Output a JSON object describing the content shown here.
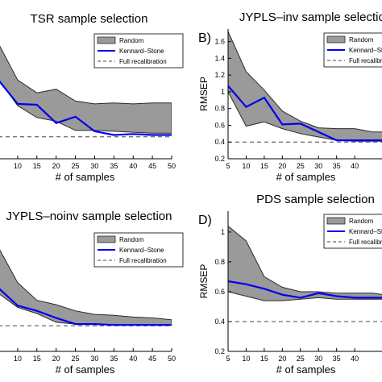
{
  "colors": {
    "random_fill": "#9a9a9a",
    "random_stroke": "#2a2a2a",
    "kennard_stone": "#0000ee",
    "full_recalibration": "#444444",
    "axis": "#000000"
  },
  "legend": {
    "random": "Random",
    "kennard_stone": "Kennard–Stone",
    "full_recalibration": "Full recalibration"
  },
  "chart_data": [
    {
      "type": "area",
      "panel_label": "",
      "title": "TSR sample selection",
      "xlabel": "# of samples",
      "ylabel": "",
      "xlim": [
        5,
        50
      ],
      "ylim": [
        0.3,
        1.7
      ],
      "xticks": [
        10,
        15,
        20,
        25,
        30,
        35,
        40,
        45,
        50
      ],
      "yticks": [],
      "legend_position": "top-right",
      "x": [
        5,
        10,
        15,
        20,
        25,
        30,
        35,
        40,
        45,
        50
      ],
      "series": [
        {
          "name": "Random",
          "kind": "band",
          "upper": [
            1.56,
            1.16,
            1.02,
            1.06,
            0.93,
            0.9,
            0.91,
            0.9,
            0.91,
            0.91
          ],
          "lower": [
            1.17,
            0.88,
            0.75,
            0.71,
            0.61,
            0.61,
            0.6,
            0.59,
            0.58,
            0.58
          ]
        },
        {
          "name": "Kennard–Stone",
          "kind": "line",
          "values": [
            1.16,
            0.9,
            0.89,
            0.69,
            0.76,
            0.6,
            0.56,
            0.57,
            0.56,
            0.56
          ]
        },
        {
          "name": "Full recalibration",
          "kind": "hline",
          "value": 0.54
        }
      ]
    },
    {
      "type": "area",
      "panel_label": "B)",
      "title": "JYPLS–inv sample selection",
      "xlabel": "# of samples",
      "ylabel": "RMSEP",
      "xlim": [
        5,
        48
      ],
      "ylim": [
        0.2,
        1.75
      ],
      "xticks": [
        5,
        10,
        15,
        20,
        25,
        30,
        35,
        40
      ],
      "yticks": [
        0.2,
        0.4,
        0.6,
        0.8,
        1.0,
        1.2,
        1.4,
        1.6
      ],
      "legend_position": "top-right",
      "x": [
        5,
        10,
        15,
        20,
        25,
        30,
        35,
        40,
        45,
        48
      ],
      "series": [
        {
          "name": "Random",
          "kind": "band",
          "upper": [
            1.72,
            1.24,
            1.02,
            0.77,
            0.65,
            0.57,
            0.56,
            0.56,
            0.52,
            0.52
          ],
          "lower": [
            1.0,
            0.59,
            0.64,
            0.56,
            0.5,
            0.46,
            0.42,
            0.41,
            0.41,
            0.41
          ]
        },
        {
          "name": "Kennard–Stone",
          "kind": "line",
          "values": [
            1.07,
            0.82,
            0.93,
            0.61,
            0.62,
            0.52,
            0.42,
            0.42,
            0.42,
            0.42
          ]
        },
        {
          "name": "Full recalibration",
          "kind": "hline",
          "value": 0.4
        }
      ]
    },
    {
      "type": "area",
      "panel_label": "",
      "title": "JYPLS–noinv sample selection",
      "xlabel": "# of samples",
      "ylabel": "",
      "xlim": [
        5,
        50
      ],
      "ylim": [
        0.3,
        1.7
      ],
      "xticks": [
        10,
        15,
        20,
        25,
        30,
        35,
        40,
        45,
        50
      ],
      "yticks": [],
      "legend_position": "top-right",
      "x": [
        5,
        10,
        15,
        20,
        25,
        30,
        35,
        40,
        45,
        50
      ],
      "series": [
        {
          "name": "Random",
          "kind": "band",
          "upper": [
            1.48,
            1.08,
            0.88,
            0.83,
            0.76,
            0.72,
            0.71,
            0.69,
            0.68,
            0.66
          ]
        },
        {
          "name": "Kennard–Stone",
          "kind": "line",
          "values": [
            1.02,
            0.82,
            0.76,
            0.68,
            0.61,
            0.61,
            0.6,
            0.6,
            0.6,
            0.6
          ]
        },
        {
          "name": "Full recalibration",
          "kind": "hline",
          "value": 0.59
        }
      ],
      "band_lower": [
        0.96,
        0.8,
        0.73,
        0.63,
        0.61,
        0.61,
        0.6,
        0.6,
        0.6,
        0.6
      ]
    },
    {
      "type": "area",
      "panel_label": "D)",
      "title": "PDS sample selection",
      "xlabel": "# of samples",
      "ylabel": "RMSEP",
      "xlim": [
        5,
        48
      ],
      "ylim": [
        0.2,
        1.14
      ],
      "xticks": [
        5,
        10,
        15,
        20,
        25,
        30,
        35,
        40
      ],
      "yticks": [
        0.2,
        0.4,
        0.6,
        0.8,
        1.0
      ],
      "legend_position": "top-right",
      "x": [
        5,
        10,
        15,
        20,
        25,
        30,
        35,
        40,
        45,
        48
      ],
      "series": [
        {
          "name": "Random",
          "kind": "band",
          "upper": [
            1.04,
            0.94,
            0.7,
            0.63,
            0.6,
            0.6,
            0.59,
            0.59,
            0.59,
            0.58
          ],
          "lower": [
            0.6,
            0.57,
            0.54,
            0.54,
            0.55,
            0.56,
            0.55,
            0.55,
            0.55,
            0.55
          ]
        },
        {
          "name": "Kennard–Stone",
          "kind": "line",
          "values": [
            0.67,
            0.65,
            0.62,
            0.58,
            0.56,
            0.59,
            0.57,
            0.56,
            0.56,
            0.56
          ]
        },
        {
          "name": "Full recalibration",
          "kind": "hline",
          "value": 0.4
        }
      ]
    }
  ]
}
